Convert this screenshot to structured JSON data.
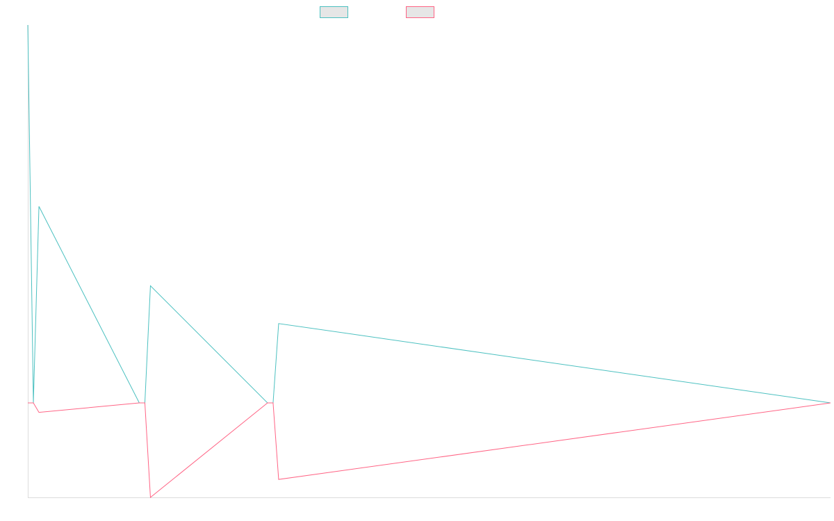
{
  "chart_data": {
    "type": "line",
    "title": "",
    "xlabel": "",
    "ylabel": "",
    "grid": false,
    "legend_position": "top-center",
    "x": [
      0,
      1,
      2,
      20,
      21,
      22,
      43,
      44,
      45,
      144
    ],
    "ylim": [
      -100,
      400
    ],
    "series": [
      {
        "color": "#4bc0c0",
        "values": [
          400,
          0,
          208,
          0,
          0,
          124,
          0,
          0,
          84,
          0
        ]
      },
      {
        "color": "#ff6384",
        "values": [
          0,
          0,
          -10,
          0,
          0,
          -100,
          0,
          0,
          -81,
          0
        ]
      }
    ]
  }
}
